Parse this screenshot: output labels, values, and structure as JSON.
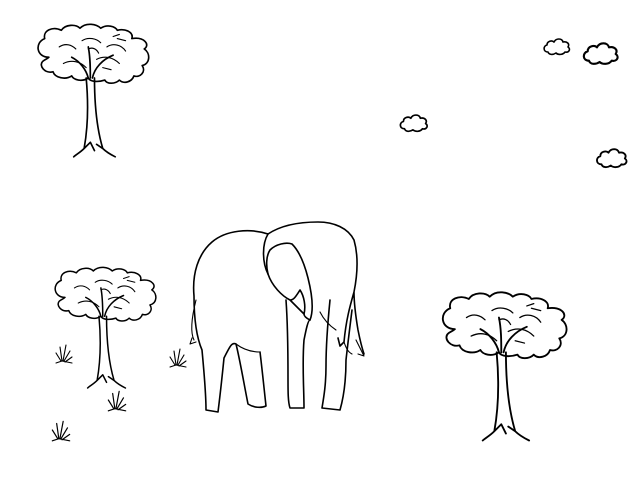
{
  "scene": {
    "name": "savanna",
    "background_color": "#ffffff",
    "line_color": "#000000"
  },
  "icons": {
    "tree": "acacia-tree-icon",
    "elephant": "elephant-icon",
    "cloud": "cloud-icon",
    "grass": "grass-tuft-icon"
  }
}
